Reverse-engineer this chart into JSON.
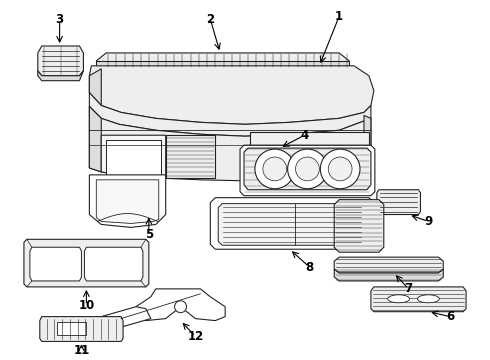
{
  "background_color": "#ffffff",
  "line_color": "#222222",
  "fig_width": 4.9,
  "fig_height": 3.6,
  "dpi": 100,
  "hatch_color": "#aaaaaa",
  "fill_light": "#eeeeee",
  "fill_mid": "#dddddd",
  "fill_white": "#ffffff"
}
